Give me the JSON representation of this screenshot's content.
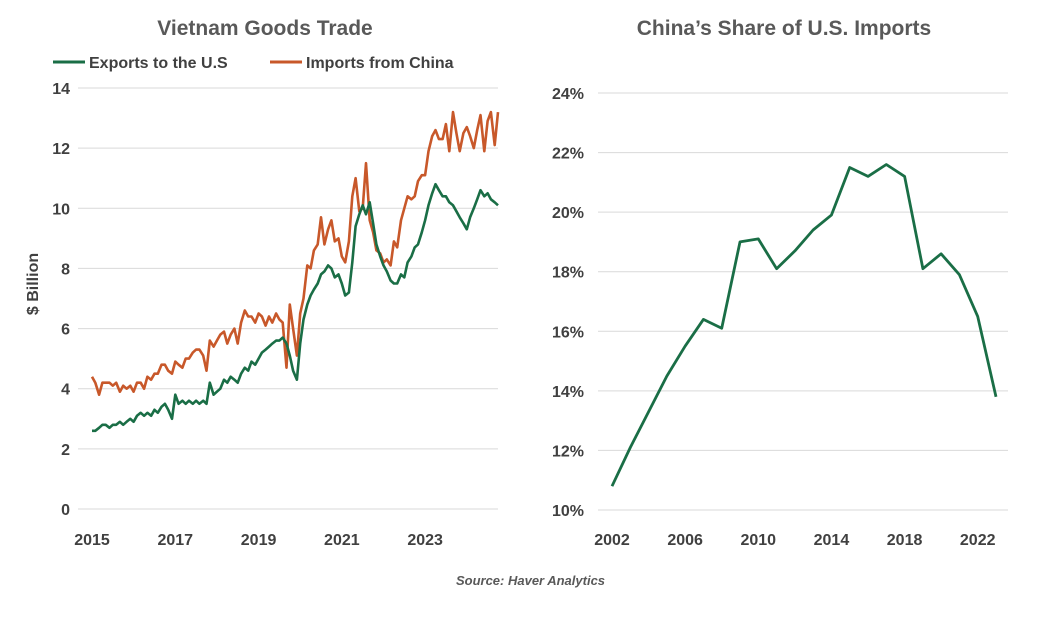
{
  "colors": {
    "exports": "#1a6e46",
    "imports": "#c8582a",
    "share": "#1a6e46",
    "grid": "#d9d9d9"
  },
  "source": "Source: Haver Analytics",
  "chart_data": [
    {
      "type": "line",
      "title": "Vietnam Goods Trade",
      "ylabel": "$ Billion",
      "xlabel": "",
      "ylim": [
        0,
        14
      ],
      "yticks": [
        "0",
        "2",
        "4",
        "6",
        "8",
        "10",
        "12",
        "14"
      ],
      "xticks": [
        "2015",
        "2017",
        "2019",
        "2021",
        "2023"
      ],
      "legend": "top",
      "series": [
        {
          "name": "Exports to the U.S",
          "x": [
            2015.0,
            2015.08,
            2015.17,
            2015.25,
            2015.33,
            2015.42,
            2015.5,
            2015.58,
            2015.67,
            2015.75,
            2015.83,
            2015.92,
            2016.0,
            2016.08,
            2016.17,
            2016.25,
            2016.33,
            2016.42,
            2016.5,
            2016.58,
            2016.67,
            2016.75,
            2016.83,
            2016.92,
            2017.0,
            2017.08,
            2017.17,
            2017.25,
            2017.33,
            2017.42,
            2017.5,
            2017.58,
            2017.67,
            2017.75,
            2017.83,
            2017.92,
            2018.0,
            2018.08,
            2018.17,
            2018.25,
            2018.33,
            2018.42,
            2018.5,
            2018.58,
            2018.67,
            2018.75,
            2018.83,
            2018.92,
            2019.0,
            2019.08,
            2019.17,
            2019.25,
            2019.33,
            2019.42,
            2019.5,
            2019.58,
            2019.67,
            2019.75,
            2019.83,
            2019.92,
            2020.0,
            2020.08,
            2020.17,
            2020.25,
            2020.33,
            2020.42,
            2020.5,
            2020.58,
            2020.67,
            2020.75,
            2020.83,
            2020.92,
            2021.0,
            2021.08,
            2021.17,
            2021.25,
            2021.33,
            2021.42,
            2021.5,
            2021.58,
            2021.67,
            2021.75,
            2021.83,
            2021.92,
            2022.0,
            2022.08,
            2022.17,
            2022.25,
            2022.33,
            2022.42,
            2022.5,
            2022.58,
            2022.67,
            2022.75,
            2022.83,
            2022.92,
            2023.0,
            2023.08,
            2023.17,
            2023.25,
            2023.33,
            2023.42,
            2023.5,
            2023.58,
            2023.67,
            2023.75,
            2023.83,
            2023.92,
            2024.0,
            2024.08,
            2024.17,
            2024.25,
            2024.33,
            2024.42,
            2024.5,
            2024.58,
            2024.67,
            2024.75
          ],
          "values": [
            2.6,
            2.6,
            2.7,
            2.8,
            2.8,
            2.7,
            2.8,
            2.8,
            2.9,
            2.8,
            2.9,
            3.0,
            2.9,
            3.1,
            3.2,
            3.1,
            3.2,
            3.1,
            3.3,
            3.2,
            3.4,
            3.5,
            3.3,
            3.0,
            3.8,
            3.5,
            3.6,
            3.5,
            3.6,
            3.5,
            3.6,
            3.5,
            3.6,
            3.5,
            4.2,
            3.8,
            3.9,
            4.0,
            4.3,
            4.2,
            4.4,
            4.3,
            4.2,
            4.5,
            4.7,
            4.6,
            4.9,
            4.8,
            5.0,
            5.2,
            5.3,
            5.4,
            5.5,
            5.6,
            5.6,
            5.7,
            5.5,
            5.1,
            4.6,
            4.3,
            5.5,
            6.3,
            6.8,
            7.1,
            7.3,
            7.5,
            7.8,
            7.9,
            8.1,
            8.0,
            7.7,
            7.8,
            7.5,
            7.1,
            7.2,
            8.2,
            9.4,
            9.8,
            10.1,
            9.8,
            10.2,
            9.5,
            8.8,
            8.4,
            8.1,
            7.9,
            7.6,
            7.5,
            7.5,
            7.8,
            7.7,
            8.2,
            8.4,
            8.7,
            8.8,
            9.2,
            9.6,
            10.1,
            10.5,
            10.8,
            10.6,
            10.4,
            10.4,
            10.2,
            10.1,
            9.9,
            9.7,
            9.5,
            9.3,
            9.7,
            10.0,
            10.3,
            10.6,
            10.4,
            10.5,
            10.3,
            10.2,
            10.1
          ],
          "values_note_hidden": ""
        },
        {
          "name": "Imports from China",
          "x": [],
          "values": []
        }
      ]
    },
    {
      "type": "line",
      "title": "China’s Share of U.S. Imports",
      "xlabel": "",
      "ylabel": "",
      "ylim": [
        10,
        24
      ],
      "yticks": [
        "10%",
        "12%",
        "14%",
        "16%",
        "18%",
        "20%",
        "22%",
        "24%"
      ],
      "xticks": [
        "2002",
        "2006",
        "2010",
        "2014",
        "2018",
        "2022"
      ],
      "series": [
        {
          "x": [
            2002,
            2003,
            2004,
            2005,
            2006,
            2007,
            2008,
            2009,
            2010,
            2011,
            2012,
            2013,
            2014,
            2015,
            2016,
            2017,
            2018,
            2019,
            2020,
            2021,
            2022,
            2023
          ],
          "values": [
            10.8,
            12.1,
            13.3,
            14.5,
            15.5,
            16.4,
            16.1,
            19.0,
            19.1,
            18.1,
            18.7,
            19.4,
            19.9,
            21.5,
            21.2,
            21.6,
            21.2,
            18.1,
            18.6,
            17.9,
            16.5,
            13.8
          ]
        }
      ]
    }
  ]
}
